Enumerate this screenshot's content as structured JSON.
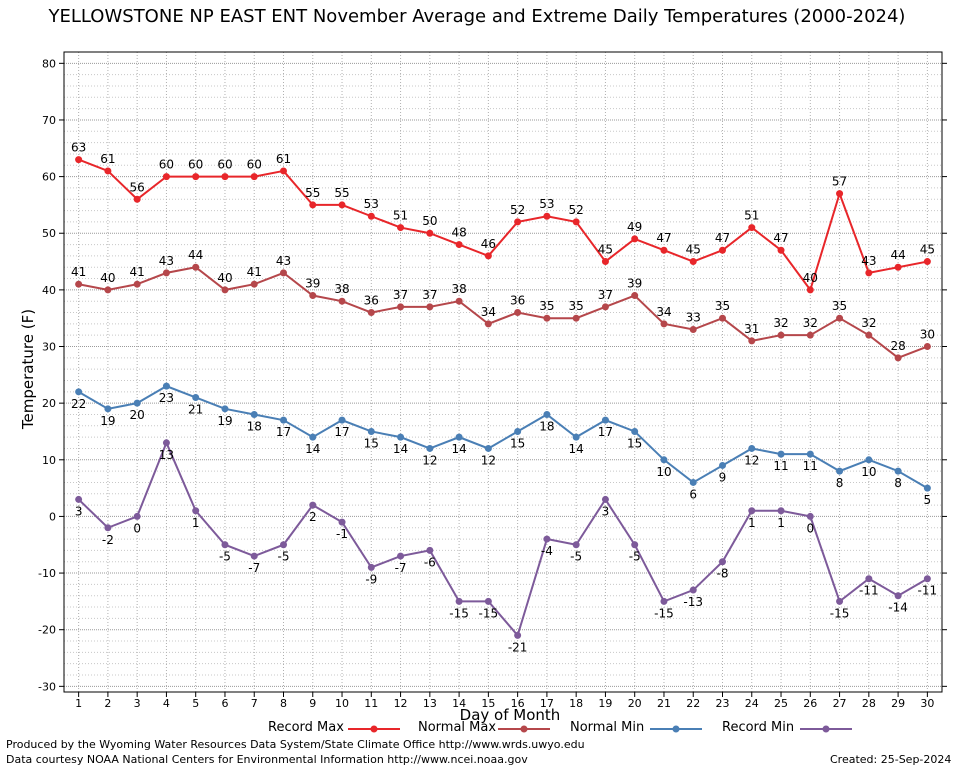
{
  "chart_data": {
    "type": "line",
    "title": "YELLOWSTONE NP EAST ENT November Average and Extreme Daily Temperatures (2000-2024)",
    "xlabel": "Day of Month",
    "ylabel": "Temperature (F)",
    "ylim": [
      -31,
      82
    ],
    "yticks": [
      -30,
      -20,
      -10,
      0,
      10,
      20,
      30,
      40,
      50,
      60,
      70,
      80
    ],
    "grid": true,
    "legend_position": "bottom",
    "x": [
      1,
      2,
      3,
      4,
      5,
      6,
      7,
      8,
      9,
      10,
      11,
      12,
      13,
      14,
      15,
      16,
      17,
      18,
      19,
      20,
      21,
      22,
      23,
      24,
      25,
      26,
      27,
      28,
      29,
      30
    ],
    "series": [
      {
        "name": "Record Max",
        "color": "#e8262a",
        "values": [
          63,
          61,
          56,
          60,
          60,
          60,
          60,
          61,
          55,
          55,
          53,
          51,
          50,
          48,
          46,
          52,
          53,
          52,
          45,
          49,
          47,
          45,
          47,
          51,
          47,
          40,
          57,
          43,
          44,
          45
        ]
      },
      {
        "name": "Normal Max",
        "color": "#b5474b",
        "values": [
          41,
          40,
          41,
          43,
          44,
          40,
          41,
          43,
          39,
          38,
          36,
          37,
          37,
          38,
          34,
          36,
          35,
          35,
          37,
          39,
          34,
          33,
          35,
          31,
          32,
          32,
          35,
          32,
          28,
          30
        ]
      },
      {
        "name": "Normal Min",
        "color": "#4a7fb5",
        "values": [
          22,
          19,
          20,
          23,
          21,
          19,
          18,
          17,
          14,
          17,
          15,
          14,
          12,
          14,
          12,
          15,
          18,
          14,
          17,
          15,
          10,
          6,
          9,
          12,
          11,
          11,
          8,
          10,
          8,
          5
        ]
      },
      {
        "name": "Record Min",
        "color": "#7d5a9a",
        "values": [
          3,
          -2,
          0,
          13,
          1,
          -5,
          -7,
          -5,
          2,
          -1,
          -9,
          -7,
          -6,
          -15,
          -15,
          -21,
          -4,
          -5,
          3,
          -5,
          -15,
          -13,
          -8,
          1,
          1,
          0,
          -15,
          -11,
          -14,
          -11
        ]
      }
    ]
  },
  "footer": {
    "produced_by": "Produced by the Wyoming Water Resources Data System/State Climate Office http://www.wrds.uwyo.edu",
    "courtesy": "Data courtesy NOAA National Centers for Environmental Information http://www.ncei.noaa.gov",
    "created": "Created: 25-Sep-2024"
  }
}
